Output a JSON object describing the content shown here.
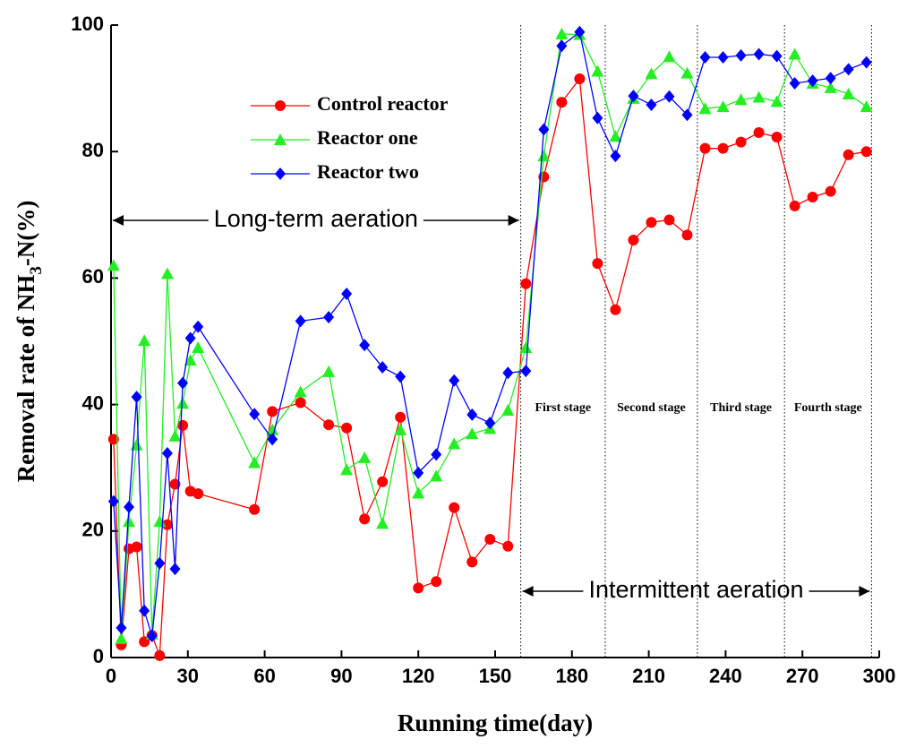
{
  "chart_data": {
    "type": "line",
    "xlabel": "Running time(day)",
    "ylabel": [
      "Removal rate of NH",
      "3",
      "-N(%)"
    ],
    "x": [
      1,
      4,
      7,
      10,
      13,
      16,
      19,
      22,
      25,
      28,
      31,
      34,
      56,
      63,
      74,
      85,
      92,
      99,
      106,
      113,
      120,
      127,
      134,
      141,
      148,
      155,
      162,
      169,
      176,
      183,
      190,
      197,
      204,
      211,
      218,
      225,
      232,
      239,
      246,
      253,
      260,
      267,
      274,
      281,
      288,
      295
    ],
    "series": [
      {
        "name": "Control reactor",
        "color": "#ff0000",
        "marker": "circle",
        "values": [
          34.5,
          2,
          17.2,
          17.5,
          2.5,
          3.5,
          0.3,
          21,
          27.4,
          36.7,
          26.3,
          25.9,
          23.4,
          38.9,
          40.3,
          36.8,
          36.3,
          21.9,
          27.8,
          38,
          11,
          12,
          23.7,
          15.1,
          18.7,
          17.6,
          59.1,
          76,
          87.8,
          91.5,
          62.3,
          55,
          66,
          68.8,
          69.2,
          66.8,
          80.5,
          80.5,
          81.5,
          83,
          82.3,
          71.4,
          72.8,
          73.7,
          79.5,
          80
        ]
      },
      {
        "name": "Reactor one",
        "color": "#22ee22",
        "marker": "triangle",
        "values": [
          62,
          3,
          21.5,
          33.6,
          50.1,
          3.7,
          21.5,
          60.7,
          35,
          40.2,
          47,
          49,
          30.8,
          36,
          42,
          45.2,
          29.7,
          31.6,
          21.2,
          36,
          26,
          28.7,
          33.8,
          35.4,
          36.2,
          39.1,
          49,
          79.3,
          98.6,
          98.5,
          92.7,
          82.4,
          88.4,
          92.3,
          95,
          92.4,
          86.8,
          87.1,
          88.2,
          88.6,
          87.9,
          95.4,
          90.8,
          90.1,
          89.1,
          87.1
        ]
      },
      {
        "name": "Reactor two",
        "color": "#0000ff",
        "marker": "diamond",
        "values": [
          24.7,
          4.7,
          23.8,
          41.2,
          7.4,
          3.4,
          14.9,
          32.3,
          14,
          43.4,
          50.5,
          52.3,
          38.5,
          34.5,
          53.2,
          53.8,
          57.5,
          49.4,
          45.9,
          44.4,
          29.2,
          32.1,
          43.8,
          38.4,
          37.1,
          45,
          45.3,
          83.5,
          96.7,
          98.9,
          85.3,
          79.3,
          88.8,
          87.4,
          88.7,
          85.8,
          94.9,
          94.9,
          95.2,
          95.4,
          95.1,
          90.8,
          91.2,
          91.6,
          93,
          94.1
        ]
      }
    ],
    "xlim": [
      0,
      300
    ],
    "xticks": [
      0,
      30,
      60,
      90,
      120,
      150,
      180,
      210,
      240,
      270,
      300
    ],
    "ylim": [
      0,
      100
    ],
    "yticks": [
      0,
      20,
      40,
      60,
      80,
      100
    ],
    "stage_boundaries": [
      160,
      193,
      229,
      263,
      297
    ],
    "stages": [
      "First stage",
      "Second stage",
      "Third stage",
      "Fourth stage"
    ],
    "long_term_label": "Long-term aeration",
    "intermittent_label": "Intermittent aeration",
    "legend": "upper-left"
  }
}
